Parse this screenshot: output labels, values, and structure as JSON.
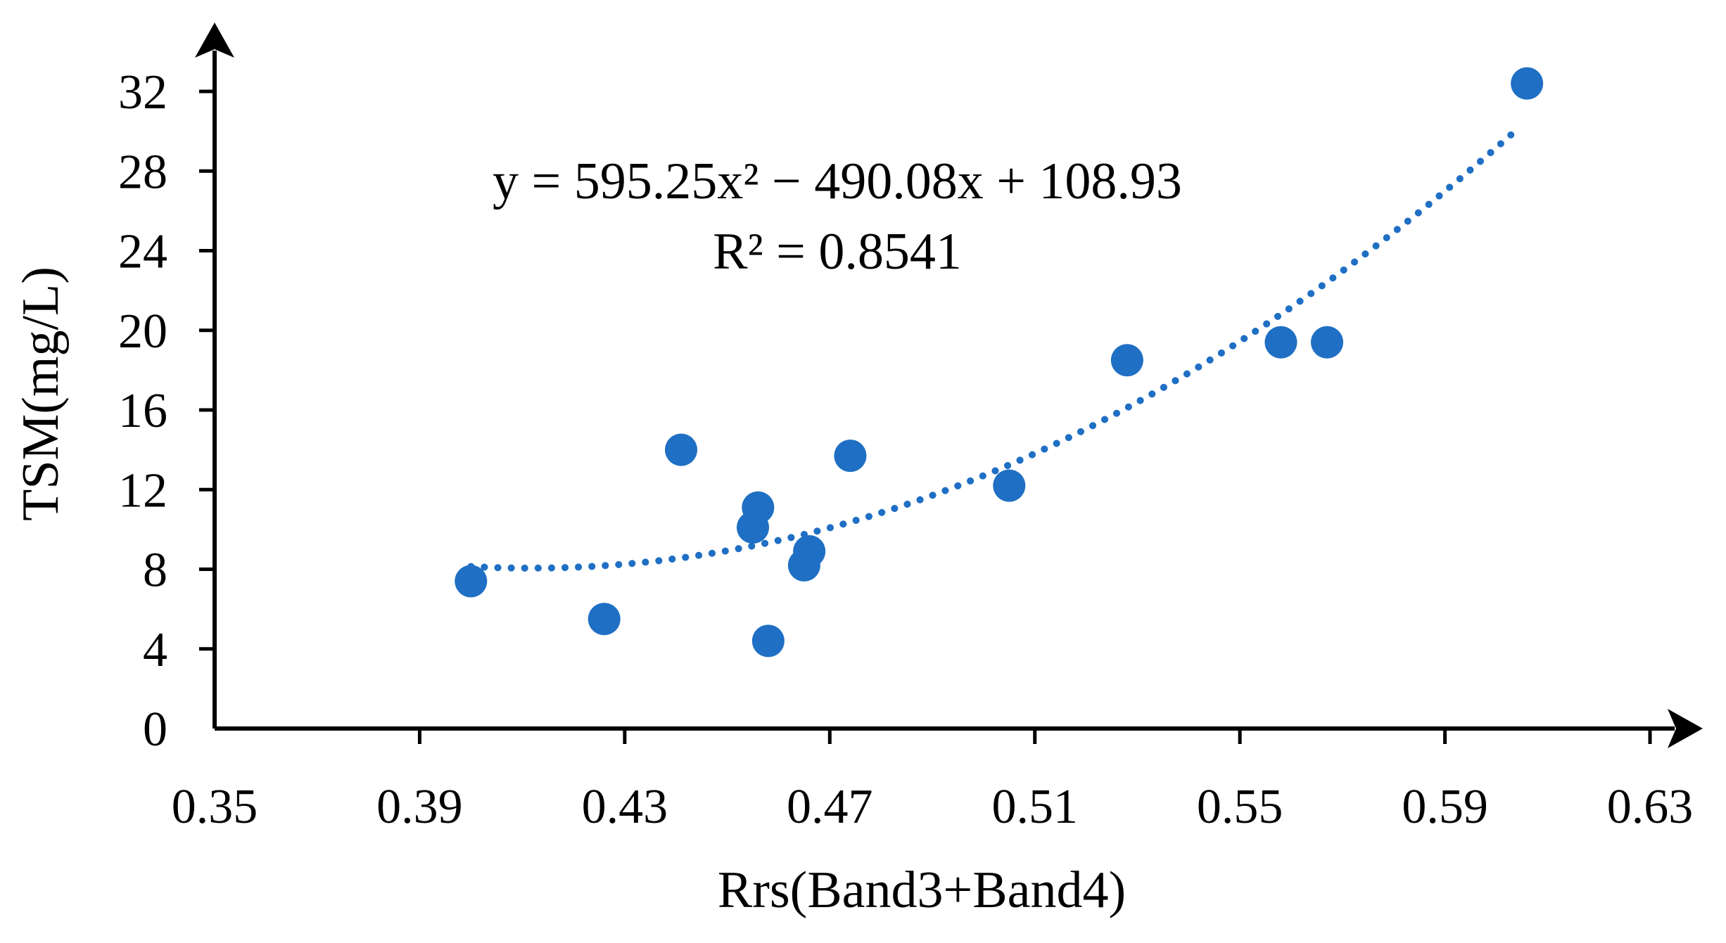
{
  "chart_data": {
    "type": "scatter",
    "xlabel": "Rrs(Band3+Band4)",
    "ylabel": "TSM(mg/L)",
    "xlim": [
      0.35,
      0.63
    ],
    "ylim": [
      0,
      32
    ],
    "x_ticks": [
      "0.35",
      "0.39",
      "0.43",
      "0.47",
      "0.51",
      "0.55",
      "0.59",
      "0.63"
    ],
    "y_ticks": [
      "0",
      "4",
      "8",
      "12",
      "16",
      "20",
      "24",
      "28",
      "32"
    ],
    "grid": false,
    "series": [
      {
        "points": [
          {
            "x": 0.4,
            "y": 7.4
          },
          {
            "x": 0.426,
            "y": 5.5
          },
          {
            "x": 0.441,
            "y": 14.0
          },
          {
            "x": 0.455,
            "y": 10.1
          },
          {
            "x": 0.456,
            "y": 11.1
          },
          {
            "x": 0.458,
            "y": 4.4
          },
          {
            "x": 0.465,
            "y": 8.2
          },
          {
            "x": 0.466,
            "y": 8.9
          },
          {
            "x": 0.474,
            "y": 13.7
          },
          {
            "x": 0.505,
            "y": 12.2
          },
          {
            "x": 0.528,
            "y": 18.5
          },
          {
            "x": 0.558,
            "y": 19.4
          },
          {
            "x": 0.567,
            "y": 19.4
          },
          {
            "x": 0.606,
            "y": 32.4
          }
        ],
        "color": "#1f6fc4"
      }
    ],
    "trendline": {
      "kind": "polynomial",
      "coefficients": [
        595.25,
        -490.08,
        108.93
      ],
      "x_range": [
        0.4,
        0.603
      ],
      "style": "dotted",
      "color": "#1f6fc4"
    },
    "annotations": {
      "equation": "y = 595.25x² − 490.08x + 108.93",
      "r_squared": "R² = 0.8541"
    }
  }
}
